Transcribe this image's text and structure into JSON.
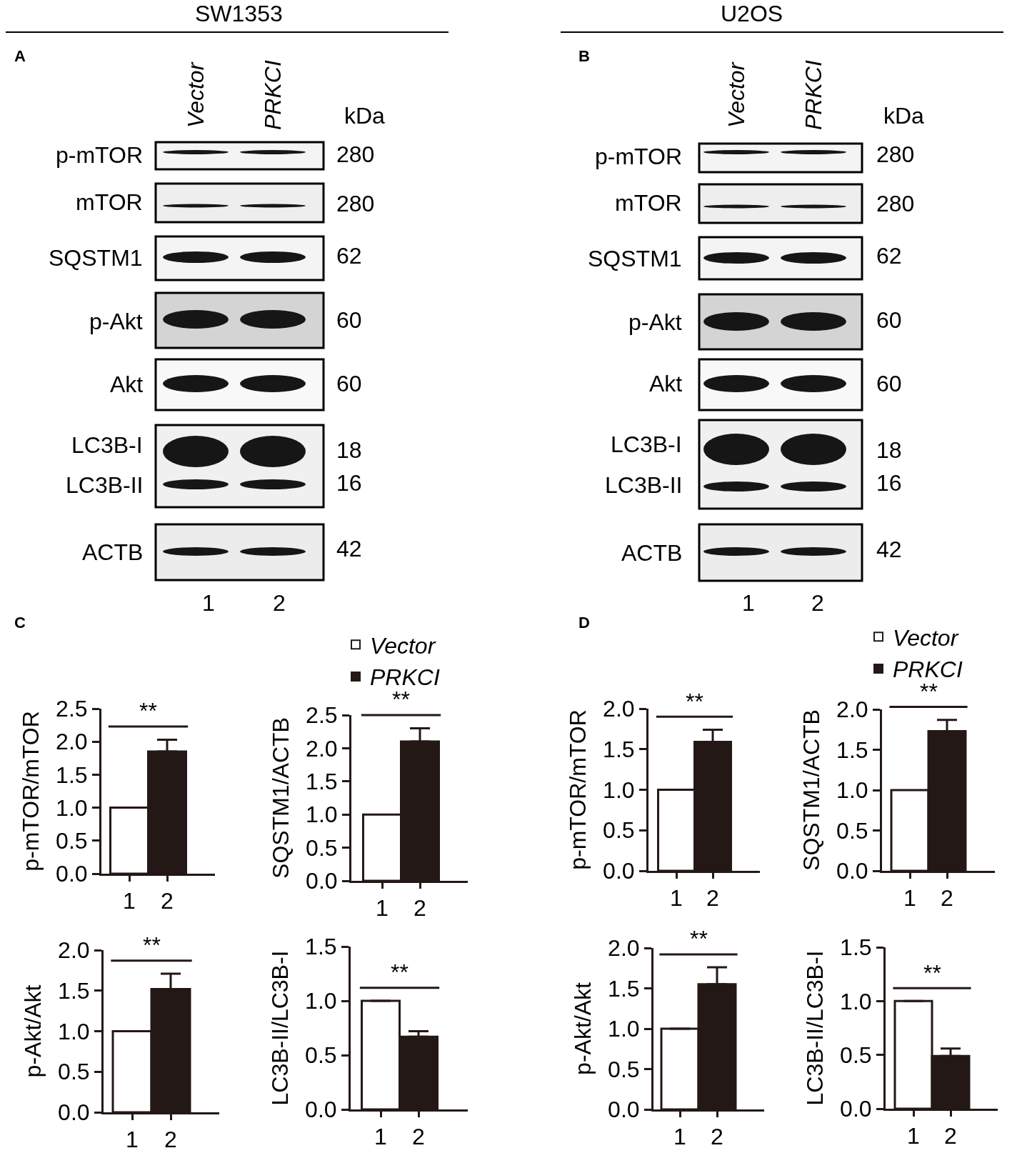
{
  "chart_data": [
    {
      "type": "other",
      "title": "SW1353",
      "subtitle": "A",
      "categories": [
        "Vector",
        "PRKCI"
      ],
      "y_categories": [
        "p-mTOR",
        "mTOR",
        "SQSTM1",
        "p-Akt",
        "Akt",
        "LC3B-I",
        "LC3B-II",
        "ACTB"
      ],
      "y2_categories": [
        "280",
        "280",
        "62",
        "60",
        "60",
        "18",
        "16",
        "42"
      ],
      "y2label": "kDa",
      "annotations": [
        "1",
        "2"
      ]
    },
    {
      "type": "other",
      "title": "U2OS",
      "subtitle": "B",
      "categories": [
        "Vector",
        "PRKCI"
      ],
      "y_categories": [
        "p-mTOR",
        "mTOR",
        "SQSTM1",
        "p-Akt",
        "Akt",
        "LC3B-I",
        "LC3B-II",
        "ACTB"
      ],
      "y2_categories": [
        "280",
        "280",
        "62",
        "60",
        "60",
        "18",
        "16",
        "42"
      ],
      "y2label": "kDa",
      "annotations": [
        "1",
        "2"
      ]
    },
    {
      "type": "bar",
      "title": "C",
      "categories": [
        "1",
        "2"
      ],
      "values": [
        1.0,
        1.85
      ],
      "colors": [
        "#ffffff",
        "#231815"
      ],
      "errors": [
        null,
        [
          1.85,
          2.03
        ]
      ],
      "ylabel": "p-mTOR/mTOR",
      "ylim": [
        0,
        2.5
      ],
      "yticks": [
        {
          "value": 0,
          "label": "0.0"
        },
        0.5,
        {
          "value": 1,
          "label": "1.0"
        },
        1.5,
        {
          "value": 2,
          "label": "2.0"
        },
        2.5
      ],
      "annotations": [
        "**"
      ]
    },
    {
      "type": "bar",
      "categories": [
        "1",
        "2"
      ],
      "series": [
        {
          "name": "Vector",
          "color": "#ffffff",
          "values": [
            1.0,
            null
          ]
        },
        {
          "name": "PRKCI",
          "color": "#231815",
          "values": [
            null,
            2.1
          ],
          "errors": [
            null,
            [
              2.1,
              2.3
            ]
          ]
        }
      ],
      "legend": "top",
      "ylabel": "SQSTM1/ACTB",
      "ylim": [
        0,
        2.5
      ],
      "yticks": [
        {
          "value": 0,
          "label": "0.0"
        },
        0.5,
        {
          "value": 1,
          "label": "1.0"
        },
        1.5,
        {
          "value": 2,
          "label": "2.0"
        },
        2.5
      ],
      "annotations": [
        "**"
      ]
    },
    {
      "type": "bar",
      "categories": [
        "1",
        "2"
      ],
      "values": [
        1.0,
        1.52
      ],
      "colors": [
        "#ffffff",
        "#231815"
      ],
      "errors": [
        null,
        [
          1.52,
          1.71
        ]
      ],
      "ylabel": "p-Akt/Akt",
      "ylim": [
        0,
        2.0
      ],
      "yticks": [
        {
          "value": 0,
          "label": "0.0"
        },
        0.5,
        {
          "value": 1,
          "label": "1.0"
        },
        1.5,
        {
          "value": 2,
          "label": "2.0"
        }
      ],
      "annotations": [
        "**"
      ]
    },
    {
      "type": "bar",
      "categories": [
        "1",
        "2"
      ],
      "values": [
        1.0,
        0.67
      ],
      "colors": [
        "#ffffff",
        "#231815"
      ],
      "errors": [
        null,
        [
          0.67,
          0.72
        ]
      ],
      "ylabel": "LC3B-II/LC3B-I",
      "ylim": [
        0,
        1.5
      ],
      "yticks": [
        {
          "value": 0,
          "label": "0.0"
        },
        0.5,
        {
          "value": 1,
          "label": "1.0"
        },
        1.5
      ],
      "annotations": [
        "**"
      ]
    },
    {
      "type": "bar",
      "title": "D",
      "categories": [
        "1",
        "2"
      ],
      "values": [
        1.0,
        1.59
      ],
      "colors": [
        "#ffffff",
        "#231815"
      ],
      "errors": [
        null,
        [
          1.59,
          1.74
        ]
      ],
      "ylabel": "p-mTOR/mTOR",
      "ylim": [
        0,
        2.0
      ],
      "yticks": [
        {
          "value": 0,
          "label": "0.0"
        },
        0.5,
        {
          "value": 1,
          "label": "1.0"
        },
        1.5,
        {
          "value": 2,
          "label": "2.0"
        }
      ],
      "annotations": [
        "**"
      ]
    },
    {
      "type": "bar",
      "categories": [
        "1",
        "2"
      ],
      "series": [
        {
          "name": "Vector",
          "color": "#ffffff",
          "values": [
            1.0,
            null
          ]
        },
        {
          "name": "PRKCI",
          "color": "#231815",
          "values": [
            null,
            1.73
          ],
          "errors": [
            null,
            [
              1.73,
              1.87
            ]
          ]
        }
      ],
      "legend": "top",
      "ylabel": "SQSTM1/ACTB",
      "ylim": [
        0,
        2.0
      ],
      "yticks": [
        {
          "value": 0,
          "label": "0.0"
        },
        0.5,
        {
          "value": 1,
          "label": "1.0"
        },
        1.5,
        {
          "value": 2,
          "label": "2.0"
        }
      ],
      "annotations": [
        "**"
      ]
    },
    {
      "type": "bar",
      "categories": [
        "1",
        "2"
      ],
      "values": [
        1.0,
        1.55
      ],
      "colors": [
        "#ffffff",
        "#231815"
      ],
      "errors": [
        null,
        [
          1.55,
          1.76
        ]
      ],
      "ylabel": "p-Akt/Akt",
      "ylim": [
        0,
        2.0
      ],
      "yticks": [
        {
          "value": 0,
          "label": "0.0"
        },
        0.5,
        {
          "value": 1,
          "label": "1.0"
        },
        1.5,
        {
          "value": 2,
          "label": "2.0"
        }
      ],
      "annotations": [
        "**"
      ]
    },
    {
      "type": "bar",
      "categories": [
        "1",
        "2"
      ],
      "values": [
        1.0,
        0.49
      ],
      "colors": [
        "#ffffff",
        "#231815"
      ],
      "errors": [
        null,
        [
          0.49,
          0.56
        ]
      ],
      "ylabel": "LC3B-II/LC3B-I",
      "ylim": [
        0,
        1.5
      ],
      "yticks": [
        {
          "value": 0,
          "label": "0.0"
        },
        0.5,
        {
          "value": 1,
          "label": "1.0"
        },
        1.5
      ],
      "annotations": [
        "**"
      ]
    }
  ]
}
